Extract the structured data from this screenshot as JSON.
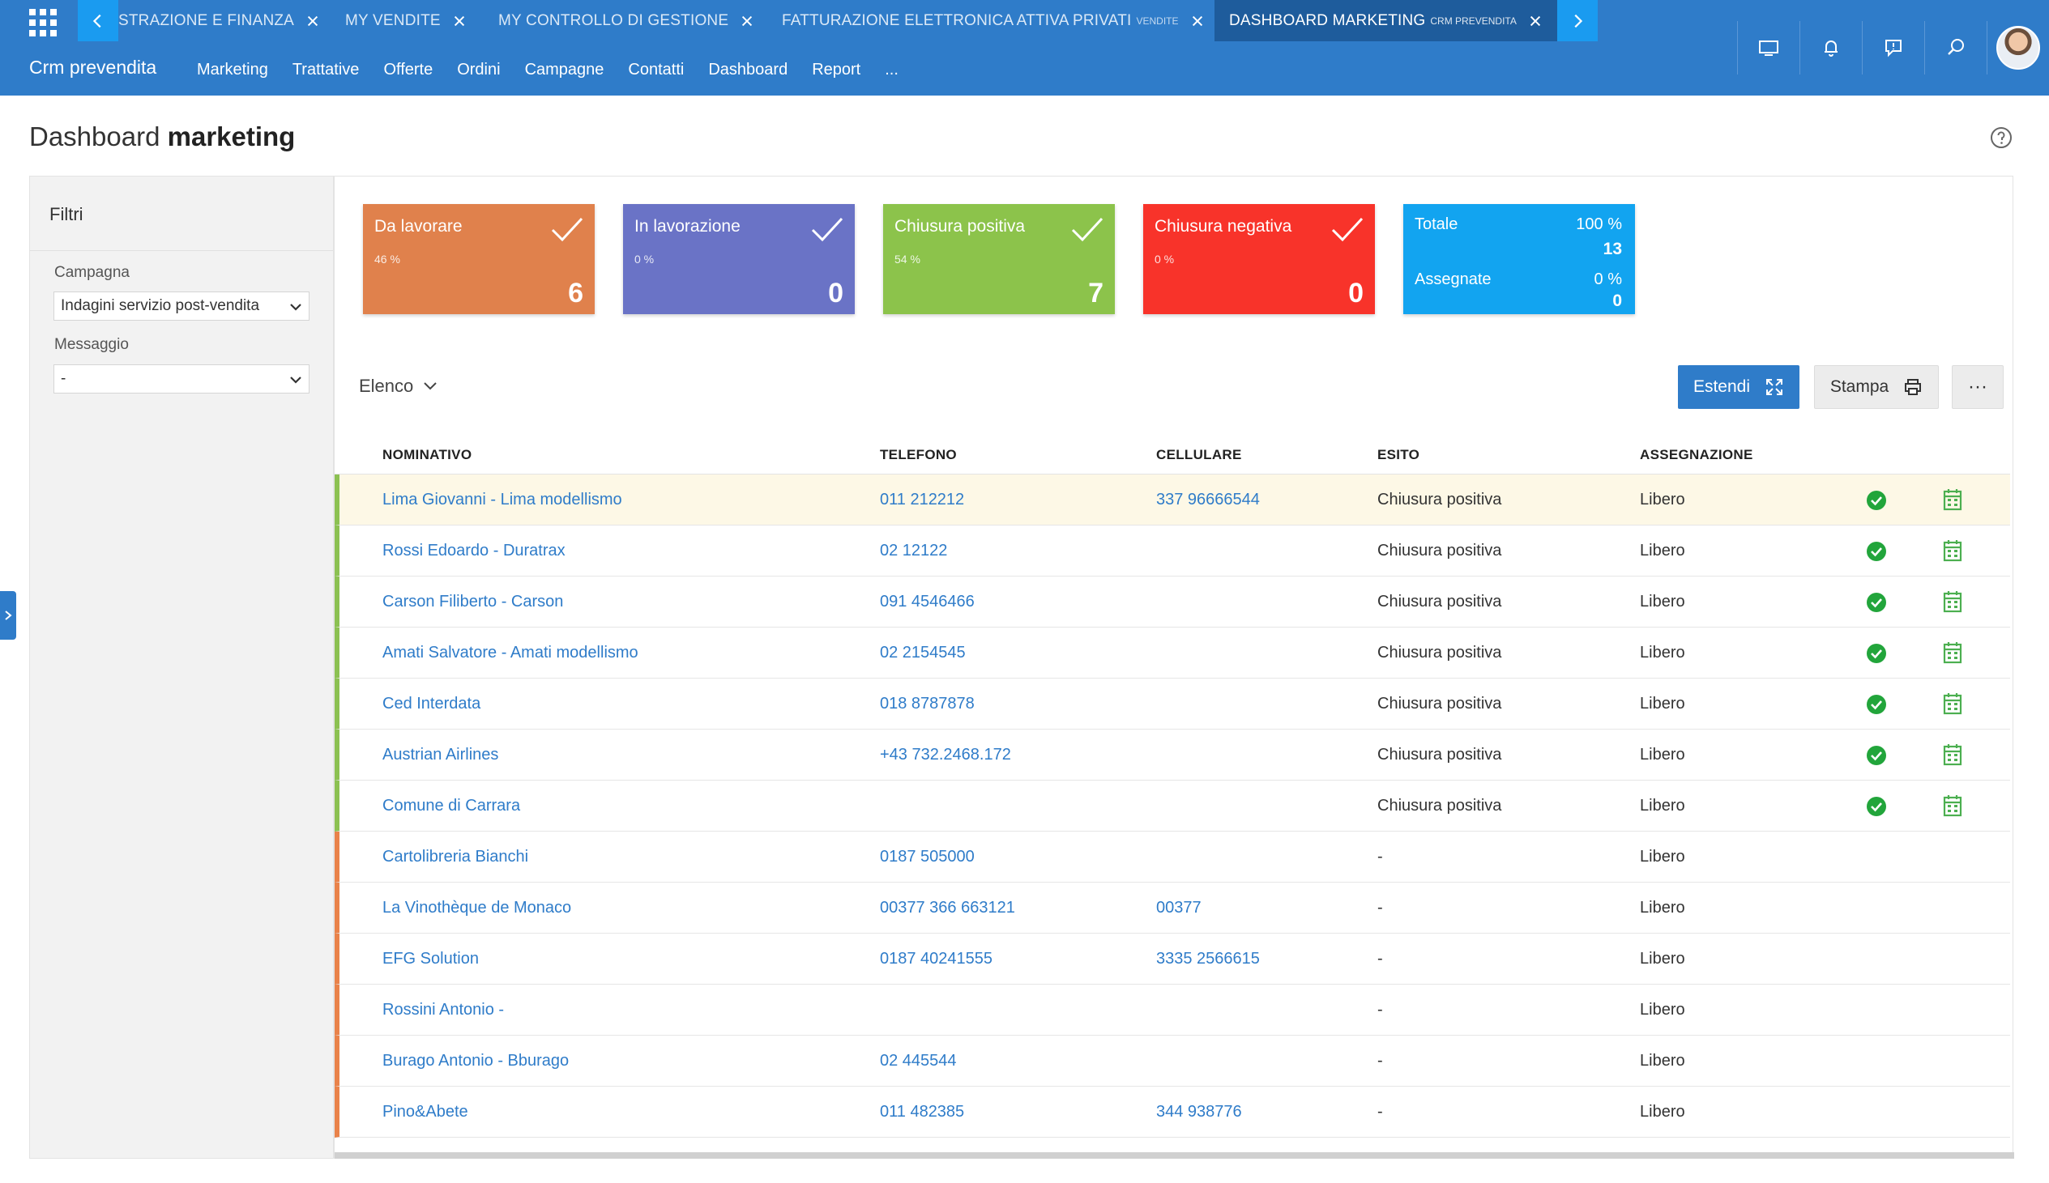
{
  "tabs": [
    {
      "label": "STRAZIONE E FINANZA",
      "sub": ""
    },
    {
      "label": "MY VENDITE",
      "sub": ""
    },
    {
      "label": "MY CONTROLLO DI GESTIONE",
      "sub": ""
    },
    {
      "label": "FATTURAZIONE ELETTRONICA ATTIVA PRIVATI",
      "sub": "VENDITE"
    },
    {
      "label": "DASHBOARD MARKETING",
      "sub": "CRM PREVENDITA"
    }
  ],
  "brand": "Crm prevendita",
  "menu": [
    "Marketing",
    "Trattative",
    "Offerte",
    "Ordini",
    "Campagne",
    "Contatti",
    "Dashboard",
    "Report",
    "..."
  ],
  "page": {
    "title_light": "Dashboard",
    "title_bold": "marketing"
  },
  "filters": {
    "title": "Filtri",
    "campagna_label": "Campagna",
    "campagna_value": "Indagini servizio post-vendita",
    "messaggio_label": "Messaggio",
    "messaggio_value": "-"
  },
  "kpis": [
    {
      "label": "Da lavorare",
      "pct": "46 %",
      "value": "6",
      "color": "#e0814c"
    },
    {
      "label": "In lavorazione",
      "pct": "0 %",
      "value": "0",
      "color": "#6a73c6"
    },
    {
      "label": "Chiusura positiva",
      "pct": "54 %",
      "value": "7",
      "color": "#8cc34b"
    },
    {
      "label": "Chiusura negativa",
      "pct": "0 %",
      "value": "0",
      "color": "#f8332a"
    }
  ],
  "kpi_total": {
    "label": "Totale",
    "pct": "100 %",
    "value": "13",
    "assigned_label": "Assegnate",
    "assigned_pct": "0 %",
    "assigned_value": "0",
    "color": "#12a4f0"
  },
  "list": {
    "view_label": "Elenco",
    "estendi_label": "Estendi",
    "stampa_label": "Stampa",
    "more_label": "···"
  },
  "table": {
    "columns": [
      "NOMINATIVO",
      "TELEFONO",
      "CELLULARE",
      "ESITO",
      "ASSEGNAZIONE"
    ],
    "rows": [
      {
        "name": "Lima Giovanni - Lima modellismo",
        "phone": "011 212212",
        "mobile": "337 96666544",
        "outcome": "Chiusura positiva",
        "assign": "Libero",
        "done": true
      },
      {
        "name": "Rossi Edoardo - Duratrax",
        "phone": "02 12122",
        "mobile": "",
        "outcome": "Chiusura positiva",
        "assign": "Libero",
        "done": true
      },
      {
        "name": "Carson Filiberto - Carson",
        "phone": "091 4546466",
        "mobile": "",
        "outcome": "Chiusura positiva",
        "assign": "Libero",
        "done": true
      },
      {
        "name": "Amati Salvatore - Amati modellismo",
        "phone": "02 2154545",
        "mobile": "",
        "outcome": "Chiusura positiva",
        "assign": "Libero",
        "done": true
      },
      {
        "name": "Ced Interdata",
        "phone": "018 8787878",
        "mobile": "",
        "outcome": "Chiusura positiva",
        "assign": "Libero",
        "done": true
      },
      {
        "name": "Austrian Airlines",
        "phone": "+43 732.2468.172",
        "mobile": "",
        "outcome": "Chiusura positiva",
        "assign": "Libero",
        "done": true
      },
      {
        "name": "Comune di Carrara",
        "phone": "",
        "mobile": "",
        "outcome": "Chiusura positiva",
        "assign": "Libero",
        "done": true
      },
      {
        "name": "Cartolibreria Bianchi",
        "phone": "0187 505000",
        "mobile": "",
        "outcome": "-",
        "assign": "Libero",
        "done": false
      },
      {
        "name": "La Vinothèque de Monaco",
        "phone": "00377 366 663121",
        "mobile": "00377",
        "outcome": "-",
        "assign": "Libero",
        "done": false
      },
      {
        "name": "EFG Solution",
        "phone": "0187 40241555",
        "mobile": "3335 2566615",
        "outcome": "-",
        "assign": "Libero",
        "done": false
      },
      {
        "name": "Rossini Antonio -",
        "phone": "",
        "mobile": "",
        "outcome": "-",
        "assign": "Libero",
        "done": false
      },
      {
        "name": "Burago Antonio - Bburago",
        "phone": "02 445544",
        "mobile": "",
        "outcome": "-",
        "assign": "Libero",
        "done": false
      },
      {
        "name": "Pino&Abete",
        "phone": "011 482385",
        "mobile": "344 938776",
        "outcome": "-",
        "assign": "Libero",
        "done": false
      }
    ]
  },
  "icons": {
    "apps": "apps-grid-icon",
    "prev": "chevron-left-icon",
    "next": "chevron-right-icon",
    "monitor": "monitor-icon",
    "bell": "bell-icon",
    "chat": "chat-icon",
    "search": "search-icon",
    "help": "help-icon",
    "check": "check-icon",
    "ok": "check-circle-icon",
    "calendar": "calendar-icon",
    "expand": "expand-icon",
    "print": "printer-icon"
  }
}
